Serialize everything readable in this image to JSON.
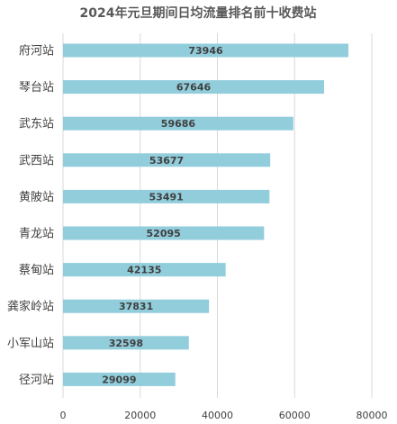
{
  "chart_data": {
    "type": "bar",
    "orientation": "horizontal",
    "title": "2024年元旦期间日均流量排名前十收费站",
    "categories": [
      "府河站",
      "琴台站",
      "武东站",
      "武西站",
      "黄陂站",
      "青龙站",
      "蔡甸站",
      "龚家岭站",
      "小军山站",
      "径河站"
    ],
    "values": [
      73946,
      67646,
      59686,
      53677,
      53491,
      52095,
      42135,
      37831,
      32598,
      29099
    ],
    "data_labels": [
      "73946",
      "67646",
      "59686",
      "53677",
      "53491",
      "52095",
      "42135",
      "37831",
      "32598",
      "29099"
    ],
    "xlim": [
      0,
      80000
    ],
    "x_ticks": [
      0,
      20000,
      40000,
      60000,
      80000
    ],
    "x_tick_labels": [
      "0",
      "20000",
      "40000",
      "60000",
      "80000"
    ],
    "grid": "vertical",
    "legend": "none",
    "bar_color": "#92CDDC",
    "grid_color": "#d9d9d9"
  }
}
